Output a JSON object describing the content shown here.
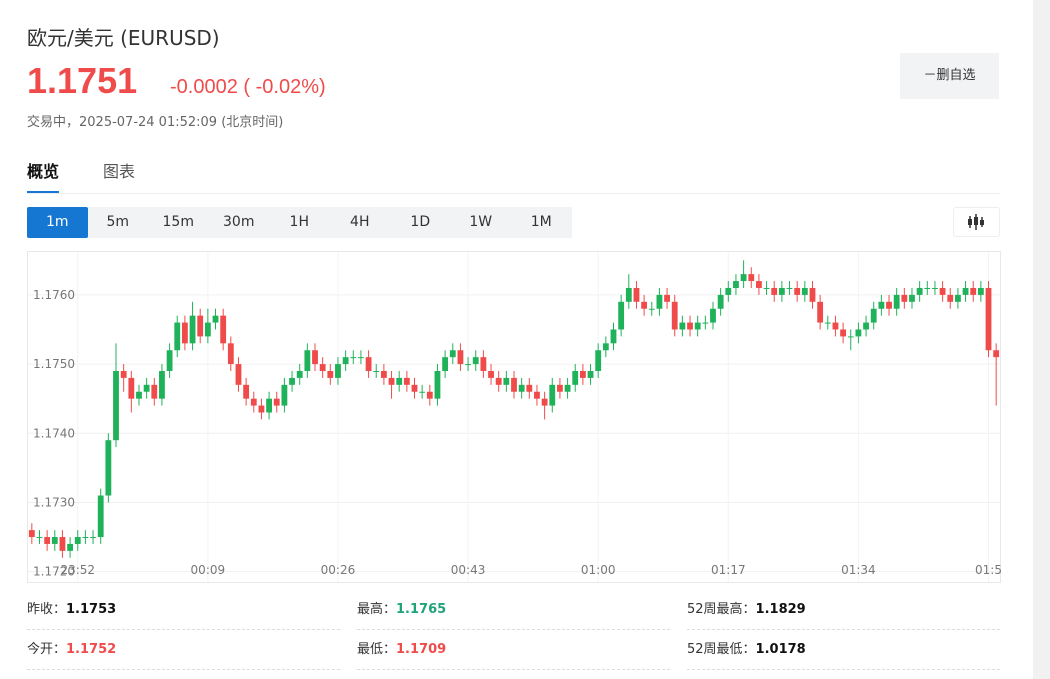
{
  "header": {
    "title": "欧元/美元 (EURUSD)",
    "price": "1.1751",
    "change": "-0.0002",
    "change_pct": "( -0.02%)",
    "status": "交易中，2025-07-24 01:52:09 (北京时间)"
  },
  "button": "－删自选",
  "tabs": [
    "概览",
    "图表"
  ],
  "intervals": [
    "1m",
    "5m",
    "15m",
    "30m",
    "1H",
    "4H",
    "1D",
    "1W",
    "1M"
  ],
  "chart_data": {
    "type": "candlestick",
    "up_color": "#1fb25a",
    "down_color": "#f04b4b",
    "grid": true,
    "ylim": [
      1.17185,
      1.17662
    ],
    "yticks": [
      {
        "value": 1.172,
        "label": "1.1720"
      },
      {
        "value": 1.173,
        "label": "1.1730"
      },
      {
        "value": 1.174,
        "label": "1.1740"
      },
      {
        "value": 1.175,
        "label": "1.1750"
      },
      {
        "value": 1.176,
        "label": "1.1760"
      }
    ],
    "categories": [
      null,
      null,
      null,
      null,
      null,
      null,
      "23:52",
      null,
      null,
      null,
      null,
      null,
      null,
      null,
      null,
      null,
      null,
      null,
      null,
      null,
      null,
      null,
      null,
      "00:09",
      null,
      null,
      null,
      null,
      null,
      null,
      null,
      null,
      null,
      null,
      null,
      null,
      null,
      null,
      null,
      null,
      "00:26",
      null,
      null,
      null,
      null,
      null,
      null,
      null,
      null,
      null,
      null,
      null,
      null,
      null,
      null,
      null,
      null,
      "00:43",
      null,
      null,
      null,
      null,
      null,
      null,
      null,
      null,
      null,
      null,
      null,
      null,
      null,
      null,
      null,
      null,
      "01:00",
      null,
      null,
      null,
      null,
      null,
      null,
      null,
      null,
      null,
      null,
      null,
      null,
      null,
      null,
      null,
      null,
      "01:17",
      null,
      null,
      null,
      null,
      null,
      null,
      null,
      null,
      null,
      null,
      null,
      null,
      null,
      null,
      null,
      null,
      "01:34",
      null,
      null,
      null,
      null,
      null,
      null,
      null,
      null,
      null,
      null,
      null,
      null,
      null,
      null,
      null,
      null,
      "01:5",
      null
    ],
    "open": [
      1.1726,
      1.1725,
      1.1725,
      1.1724,
      1.1725,
      1.1723,
      1.1724,
      1.1725,
      1.1725,
      1.1725,
      1.1731,
      1.1739,
      1.1749,
      1.1748,
      1.1745,
      1.1746,
      1.1747,
      1.1745,
      1.1749,
      1.1752,
      1.1756,
      1.1753,
      1.1757,
      1.1754,
      1.1756,
      1.1757,
      1.1753,
      1.175,
      1.1747,
      1.1745,
      1.1744,
      1.1743,
      1.1745,
      1.1744,
      1.1747,
      1.1748,
      1.1749,
      1.1752,
      1.175,
      1.1749,
      1.1748,
      1.175,
      1.1751,
      1.1751,
      1.1751,
      1.1749,
      1.1749,
      1.1748,
      1.1747,
      1.1748,
      1.1747,
      1.1746,
      1.1746,
      1.1745,
      1.1749,
      1.1751,
      1.1752,
      1.175,
      1.175,
      1.1751,
      1.1749,
      1.1748,
      1.1747,
      1.1748,
      1.1746,
      1.1747,
      1.1746,
      1.1745,
      1.1744,
      1.1747,
      1.1746,
      1.1747,
      1.1749,
      1.1748,
      1.1749,
      1.1752,
      1.1753,
      1.1755,
      1.1759,
      1.1761,
      1.1759,
      1.1758,
      1.1758,
      1.176,
      1.1759,
      1.1755,
      1.1756,
      1.1755,
      1.1756,
      1.1756,
      1.1758,
      1.176,
      1.1761,
      1.1762,
      1.1763,
      1.1762,
      1.1761,
      1.1761,
      1.176,
      1.1761,
      1.1761,
      1.176,
      1.1761,
      1.1759,
      1.1756,
      1.1756,
      1.1755,
      1.1754,
      1.1754,
      1.1755,
      1.1756,
      1.1758,
      1.1759,
      1.1758,
      1.176,
      1.1759,
      1.176,
      1.1761,
      1.1761,
      1.1761,
      1.176,
      1.1759,
      1.176,
      1.1761,
      1.176,
      1.1761,
      1.1752
    ],
    "high": [
      1.1727,
      1.1726,
      1.1726,
      1.1726,
      1.1726,
      1.1725,
      1.1726,
      1.1726,
      1.1726,
      1.1732,
      1.174,
      1.1753,
      1.175,
      1.1749,
      1.1747,
      1.1748,
      1.1748,
      1.175,
      1.1753,
      1.1757,
      1.1757,
      1.1759,
      1.1758,
      1.1758,
      1.1758,
      1.1758,
      1.1754,
      1.1751,
      1.1748,
      1.1746,
      1.1745,
      1.1746,
      1.1746,
      1.1748,
      1.1749,
      1.175,
      1.1753,
      1.1753,
      1.1751,
      1.175,
      1.1751,
      1.1752,
      1.1752,
      1.1752,
      1.1752,
      1.175,
      1.175,
      1.1749,
      1.1749,
      1.1749,
      1.1748,
      1.1747,
      1.1747,
      1.175,
      1.1752,
      1.1753,
      1.1753,
      1.1751,
      1.1752,
      1.1752,
      1.175,
      1.1749,
      1.1749,
      1.1749,
      1.1748,
      1.1748,
      1.1747,
      1.1746,
      1.1748,
      1.1748,
      1.1748,
      1.175,
      1.175,
      1.175,
      1.1753,
      1.1754,
      1.1756,
      1.176,
      1.1763,
      1.1762,
      1.176,
      1.1759,
      1.1761,
      1.1761,
      1.176,
      1.1757,
      1.1757,
      1.1757,
      1.1757,
      1.1759,
      1.1761,
      1.1762,
      1.1763,
      1.1765,
      1.1764,
      1.1763,
      1.1762,
      1.1762,
      1.1762,
      1.1762,
      1.1762,
      1.1762,
      1.1762,
      1.176,
      1.1757,
      1.1757,
      1.1756,
      1.1755,
      1.1756,
      1.1757,
      1.1759,
      1.176,
      1.176,
      1.1761,
      1.1761,
      1.1761,
      1.1762,
      1.1762,
      1.1762,
      1.1762,
      1.1761,
      1.1761,
      1.1762,
      1.1762,
      1.1762,
      1.1762,
      1.1753
    ],
    "low": [
      1.1724,
      1.1724,
      1.1723,
      1.1723,
      1.1722,
      1.1722,
      1.1723,
      1.1724,
      1.1724,
      1.1724,
      1.173,
      1.1738,
      1.1746,
      1.1743,
      1.1744,
      1.1745,
      1.1744,
      1.1744,
      1.1748,
      1.1751,
      1.1752,
      1.1752,
      1.1753,
      1.1753,
      1.1755,
      1.1752,
      1.1749,
      1.1746,
      1.1744,
      1.1743,
      1.1742,
      1.1742,
      1.1743,
      1.1743,
      1.1746,
      1.1747,
      1.1748,
      1.1749,
      1.1748,
      1.1747,
      1.1747,
      1.1749,
      1.175,
      1.175,
      1.1748,
      1.1748,
      1.1747,
      1.1745,
      1.1746,
      1.1746,
      1.1745,
      1.1745,
      1.1744,
      1.1744,
      1.1748,
      1.175,
      1.1749,
      1.1749,
      1.1749,
      1.1748,
      1.1747,
      1.1746,
      1.1746,
      1.1745,
      1.1745,
      1.1745,
      1.1744,
      1.1742,
      1.1743,
      1.1745,
      1.1745,
      1.1746,
      1.1747,
      1.1747,
      1.1748,
      1.1751,
      1.1752,
      1.1754,
      1.1758,
      1.1758,
      1.1757,
      1.1757,
      1.1757,
      1.1758,
      1.1754,
      1.1754,
      1.1754,
      1.1754,
      1.1755,
      1.1755,
      1.1757,
      1.1759,
      1.176,
      1.1761,
      1.1761,
      1.176,
      1.176,
      1.1759,
      1.1759,
      1.176,
      1.1759,
      1.1759,
      1.1758,
      1.1755,
      1.1755,
      1.1754,
      1.1753,
      1.1752,
      1.1753,
      1.1754,
      1.1755,
      1.1757,
      1.1757,
      1.1757,
      1.1758,
      1.1758,
      1.1759,
      1.176,
      1.176,
      1.1759,
      1.1758,
      1.1758,
      1.1759,
      1.1759,
      1.1759,
      1.1751,
      1.1744
    ],
    "close": [
      1.1725,
      1.1725,
      1.1724,
      1.1725,
      1.1723,
      1.1724,
      1.1725,
      1.1725,
      1.1725,
      1.1731,
      1.1739,
      1.1749,
      1.1748,
      1.1745,
      1.1746,
      1.1747,
      1.1745,
      1.1749,
      1.1752,
      1.1756,
      1.1753,
      1.1757,
      1.1754,
      1.1756,
      1.1757,
      1.1753,
      1.175,
      1.1747,
      1.1745,
      1.1744,
      1.1743,
      1.1745,
      1.1744,
      1.1747,
      1.1748,
      1.1749,
      1.1752,
      1.175,
      1.1749,
      1.1748,
      1.175,
      1.1751,
      1.1751,
      1.1751,
      1.1749,
      1.1749,
      1.1748,
      1.1747,
      1.1748,
      1.1747,
      1.1746,
      1.1746,
      1.1745,
      1.1749,
      1.1751,
      1.1752,
      1.175,
      1.175,
      1.1751,
      1.1749,
      1.1748,
      1.1747,
      1.1748,
      1.1746,
      1.1747,
      1.1746,
      1.1745,
      1.1744,
      1.1747,
      1.1746,
      1.1747,
      1.1749,
      1.1748,
      1.1749,
      1.1752,
      1.1753,
      1.1755,
      1.1759,
      1.1761,
      1.1759,
      1.1758,
      1.1758,
      1.176,
      1.1759,
      1.1755,
      1.1756,
      1.1755,
      1.1756,
      1.1756,
      1.1758,
      1.176,
      1.1761,
      1.1762,
      1.1763,
      1.1762,
      1.1761,
      1.1761,
      1.176,
      1.1761,
      1.1761,
      1.176,
      1.1761,
      1.1759,
      1.1756,
      1.1756,
      1.1755,
      1.1754,
      1.1754,
      1.1755,
      1.1756,
      1.1758,
      1.1759,
      1.1758,
      1.176,
      1.1759,
      1.176,
      1.1761,
      1.1761,
      1.1761,
      1.176,
      1.1759,
      1.176,
      1.1761,
      1.176,
      1.1761,
      1.1752,
      1.1751
    ]
  },
  "stats": [
    [
      {
        "label": "昨收：",
        "value": "1.1753"
      },
      {
        "label": "最高：",
        "value": "1.1765"
      },
      {
        "label": "52周最高：",
        "value": "1.1829"
      }
    ],
    [
      {
        "label": "今开：",
        "value": "1.1752"
      },
      {
        "label": "最低：",
        "value": "1.1709"
      },
      {
        "label": "52周最低：",
        "value": "1.0178"
      }
    ]
  ]
}
